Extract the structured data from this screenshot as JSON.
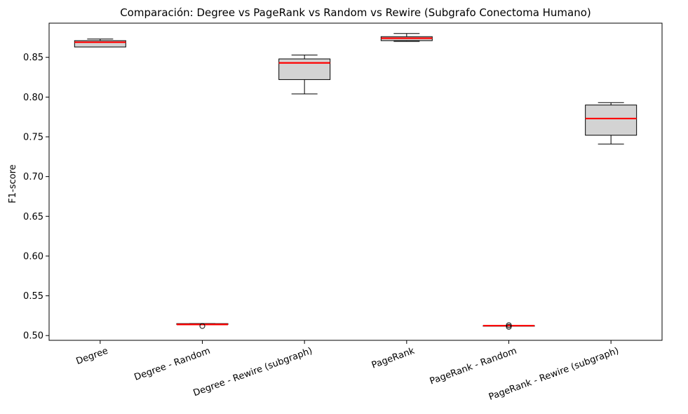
{
  "chart_data": {
    "type": "box",
    "title": "Comparación: Degree vs PageRank vs Random vs Rewire (Subgrafo Conectoma Humano)",
    "xlabel": "",
    "ylabel": "F1-score",
    "ylim": [
      0.494,
      0.893
    ],
    "yticks": [
      0.5,
      0.55,
      0.6,
      0.65,
      0.7,
      0.75,
      0.8,
      0.85
    ],
    "ytick_labels": [
      "0.50",
      "0.55",
      "0.60",
      "0.65",
      "0.70",
      "0.75",
      "0.80",
      "0.85"
    ],
    "categories": [
      "Degree",
      "Degree - Random",
      "Degree - Rewire (subgraph)",
      "PageRank",
      "PageRank - Random",
      "PageRank - Rewire (subgraph)"
    ],
    "boxes": [
      {
        "whislo": 0.863,
        "q1": 0.863,
        "med": 0.869,
        "q3": 0.871,
        "whishi": 0.873,
        "fliers": []
      },
      {
        "whislo": 0.514,
        "q1": 0.514,
        "med": 0.514,
        "q3": 0.515,
        "whishi": 0.515,
        "fliers": [
          0.512
        ]
      },
      {
        "whislo": 0.804,
        "q1": 0.822,
        "med": 0.843,
        "q3": 0.848,
        "whishi": 0.853,
        "fliers": []
      },
      {
        "whislo": 0.87,
        "q1": 0.871,
        "med": 0.874,
        "q3": 0.876,
        "whishi": 0.88,
        "fliers": []
      },
      {
        "whislo": 0.5125,
        "q1": 0.5125,
        "med": 0.5125,
        "q3": 0.5125,
        "whishi": 0.5125,
        "fliers": [
          0.513,
          0.511
        ]
      },
      {
        "whislo": 0.741,
        "q1": 0.752,
        "med": 0.773,
        "q3": 0.79,
        "whishi": 0.793,
        "fliers": []
      }
    ],
    "colors": {
      "box_fill": "#d3d3d3",
      "median": "#ff0000",
      "edge": "#000000"
    },
    "grid": false,
    "legend": "none",
    "xtick_rotation_deg": -20
  }
}
